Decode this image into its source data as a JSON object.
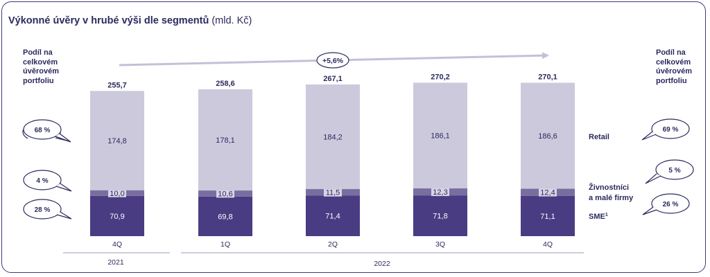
{
  "title": {
    "main": "Výkonné úvěry v hrubé výši dle segmentů",
    "unit": "(mld. Kč)"
  },
  "share_header_left": [
    "Podíl na",
    "celkovém",
    "úvěrovém",
    "portfoliu"
  ],
  "share_header_right": [
    "Podíl na",
    "celkovém",
    "úvěrovém",
    "portfoliu"
  ],
  "growth_badge": "+5,6%",
  "segment_labels": {
    "retail": "Retail",
    "small_business": [
      "Živnostníci",
      "a malé firmy"
    ],
    "sme": "SME",
    "sme_footnote": "1"
  },
  "shares_left": [
    "68 %",
    "4 %",
    "28 %"
  ],
  "shares_right": [
    "69 %",
    "5 %",
    "26 %"
  ],
  "years": [
    "2021",
    "2022"
  ],
  "colors": {
    "retail": "#ccc9dd",
    "small_business": "#7a6ea0",
    "sme": "#4a3c82",
    "text": "#2b2a5e",
    "frame": "#3b3a78"
  },
  "chart_data": {
    "type": "bar",
    "stacked": true,
    "categories": [
      "4Q",
      "1Q",
      "2Q",
      "3Q",
      "4Q"
    ],
    "series": [
      {
        "name": "SME",
        "values": [
          70.9,
          69.8,
          71.4,
          71.8,
          71.1
        ],
        "labels": [
          "70,9",
          "69,8",
          "71,4",
          "71,8",
          "71,1"
        ]
      },
      {
        "name": "Živnostníci a malé firmy",
        "values": [
          10.0,
          10.6,
          11.5,
          12.3,
          12.4
        ],
        "labels": [
          "10,0",
          "10,6",
          "11,5",
          "12,3",
          "12,4"
        ]
      },
      {
        "name": "Retail",
        "values": [
          174.8,
          178.1,
          184.2,
          186.1,
          186.6
        ],
        "labels": [
          "174,8",
          "178,1",
          "184,2",
          "186,1",
          "186,6"
        ]
      }
    ],
    "totals": [
      255.7,
      258.6,
      267.1,
      270.2,
      270.1
    ],
    "total_labels": [
      "255,7",
      "258,6",
      "267,1",
      "270,2",
      "270,1"
    ],
    "title": "Výkonné úvěry v hrubé výši dle segmentů",
    "ylabel": "mld. Kč",
    "grid": false
  }
}
